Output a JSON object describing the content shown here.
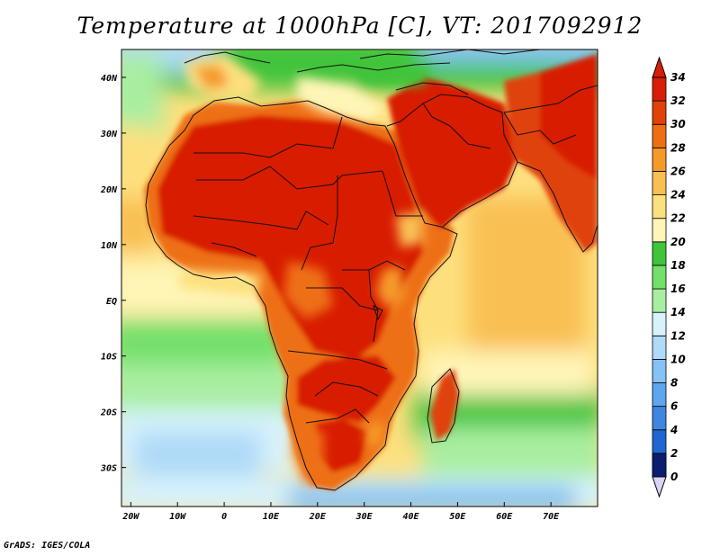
{
  "title": "Temperature at 1000hPa [C], VT: 2017092912",
  "footer": "GrADS: IGES/COLA",
  "map": {
    "lon_range": [
      -22,
      80
    ],
    "lat_range": [
      -37,
      45
    ],
    "lon_ticks": [
      {
        "v": -20,
        "label": "20W"
      },
      {
        "v": -10,
        "label": "10W"
      },
      {
        "v": 0,
        "label": "0"
      },
      {
        "v": 10,
        "label": "10E"
      },
      {
        "v": 20,
        "label": "20E"
      },
      {
        "v": 30,
        "label": "30E"
      },
      {
        "v": 40,
        "label": "40E"
      },
      {
        "v": 50,
        "label": "50E"
      },
      {
        "v": 60,
        "label": "60E"
      },
      {
        "v": 70,
        "label": "70E"
      }
    ],
    "lat_ticks": [
      {
        "v": 40,
        "label": "40N"
      },
      {
        "v": 30,
        "label": "30N"
      },
      {
        "v": 20,
        "label": "20N"
      },
      {
        "v": 10,
        "label": "10N"
      },
      {
        "v": 0,
        "label": "EQ"
      },
      {
        "v": -10,
        "label": "10S"
      },
      {
        "v": -20,
        "label": "20S"
      },
      {
        "v": -30,
        "label": "30S"
      }
    ]
  },
  "colorbar": {
    "labels": [
      "0",
      "2",
      "4",
      "6",
      "8",
      "10",
      "12",
      "14",
      "16",
      "18",
      "20",
      "22",
      "24",
      "26",
      "28",
      "30",
      "32",
      "34"
    ],
    "colors": [
      "#0a1d6e",
      "#0b3ea8",
      "#1f66d1",
      "#3e86e0",
      "#5ea6ef",
      "#86c2f5",
      "#afdaf8",
      "#d7f2fb",
      "#a8eea0",
      "#74e06a",
      "#3fc43a",
      "#fff5b8",
      "#fde07e",
      "#f9bf52",
      "#f59a2a",
      "#ee6f12",
      "#e04208",
      "#d81e06"
    ]
  }
}
